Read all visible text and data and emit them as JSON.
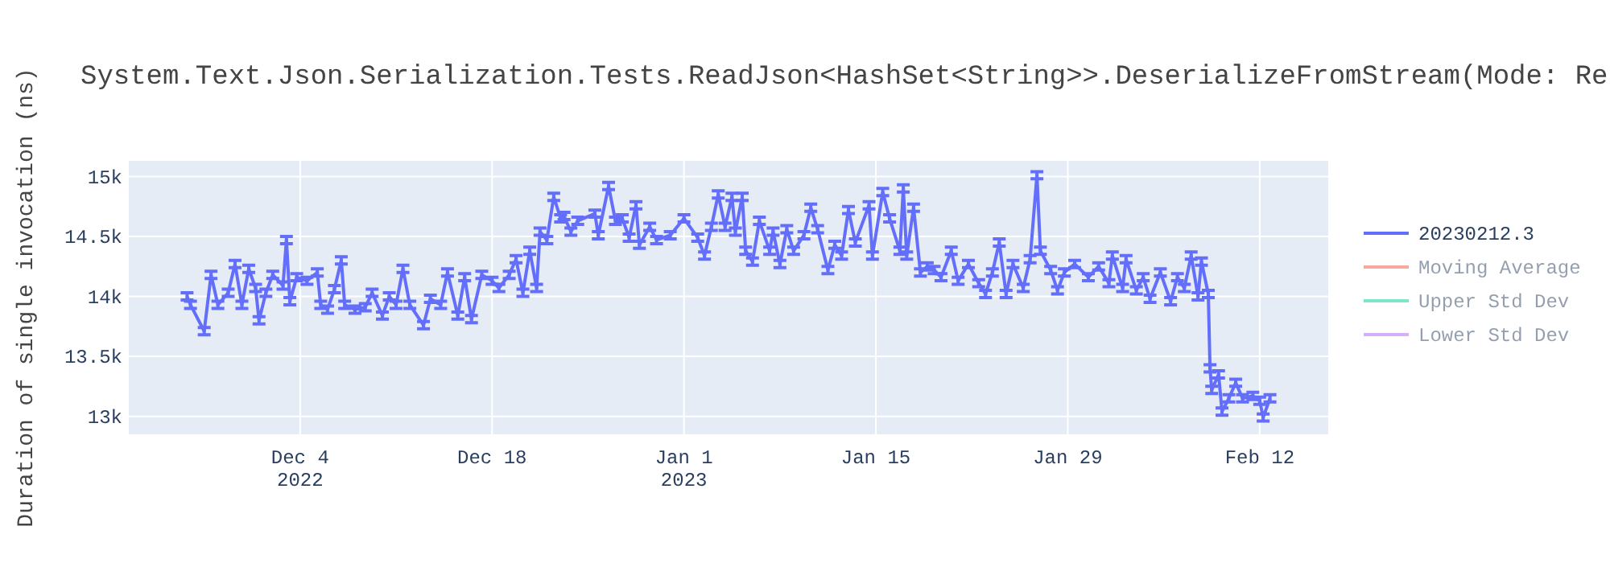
{
  "chart_data": {
    "type": "line",
    "title": "System.Text.Json.Serialization.Tests.ReadJson<HashSet<String>>.DeserializeFromStream(Mode: Re",
    "ylabel": "Duration of single invocation (ns)",
    "x": [
      "2022-11-25T18:00",
      "2022-11-26T00:00",
      "2022-11-27T00:00",
      "2022-11-27T12:00",
      "2022-11-28T00:00",
      "2022-11-28T18:00",
      "2022-11-29T06:00",
      "2022-11-29T18:00",
      "2022-11-30T06:00",
      "2022-11-30T18:00",
      "2022-12-01T00:00",
      "2022-12-01T12:00",
      "2022-12-02T00:00",
      "2022-12-02T18:00",
      "2022-12-03T00:00",
      "2022-12-03T06:00",
      "2022-12-03T18:00",
      "2022-12-04T12:00",
      "2022-12-05T06:00",
      "2022-12-05T12:00",
      "2022-12-06T00:00",
      "2022-12-06T12:00",
      "2022-12-07T00:00",
      "2022-12-07T06:00",
      "2022-12-08T00:00",
      "2022-12-08T18:00",
      "2022-12-09T06:00",
      "2022-12-10T00:00",
      "2022-12-10T12:00",
      "2022-12-11T00:00",
      "2022-12-11T12:00",
      "2022-12-12T00:00",
      "2022-12-13T00:00",
      "2022-12-13T12:00",
      "2022-12-14T06:00",
      "2022-12-14T18:00",
      "2022-12-15T12:00",
      "2022-12-16T00:00",
      "2022-12-16T12:00",
      "2022-12-17T06:00",
      "2022-12-18T00:00",
      "2022-12-18T12:00",
      "2022-12-19T06:00",
      "2022-12-19T18:00",
      "2022-12-20T06:00",
      "2022-12-20T18:00",
      "2022-12-21T06:00",
      "2022-12-21T12:00",
      "2022-12-22T00:00",
      "2022-12-22T12:00",
      "2022-12-23T00:00",
      "2022-12-23T06:00",
      "2022-12-23T18:00",
      "2022-12-24T06:00",
      "2022-12-25T12:00",
      "2022-12-25T18:00",
      "2022-12-26T12:00",
      "2022-12-27T00:00",
      "2022-12-27T12:00",
      "2022-12-28T00:00",
      "2022-12-28T12:00",
      "2022-12-28T18:00",
      "2022-12-29T12:00",
      "2022-12-30T00:00",
      "2022-12-31T00:00",
      "2023-01-01T00:00",
      "2023-01-02T00:00",
      "2023-01-02T12:00",
      "2023-01-03T00:00",
      "2023-01-03T12:00",
      "2023-01-04T00:00",
      "2023-01-04T12:00",
      "2023-01-04T18:00",
      "2023-01-05T06:00",
      "2023-01-05T12:00",
      "2023-01-06T00:00",
      "2023-01-06T12:00",
      "2023-01-07T06:00",
      "2023-01-07T12:00",
      "2023-01-08T00:00",
      "2023-01-08T12:00",
      "2023-01-09T00:00",
      "2023-01-09T18:00",
      "2023-01-10T06:00",
      "2023-01-10T18:00",
      "2023-01-11T12:00",
      "2023-01-12T00:00",
      "2023-01-12T12:00",
      "2023-01-13T00:00",
      "2023-01-13T12:00",
      "2023-01-14T12:00",
      "2023-01-14T18:00",
      "2023-01-15T12:00",
      "2023-01-16T00:00",
      "2023-01-16T18:00",
      "2023-01-17T00:00",
      "2023-01-17T06:00",
      "2023-01-17T18:00",
      "2023-01-18T06:00",
      "2023-01-18T18:00",
      "2023-01-19T06:00",
      "2023-01-19T18:00",
      "2023-01-20T12:00",
      "2023-01-21T00:00",
      "2023-01-21T18:00",
      "2023-01-22T12:00",
      "2023-01-23T00:00",
      "2023-01-23T12:00",
      "2023-01-24T00:00",
      "2023-01-24T12:00",
      "2023-01-25T00:00",
      "2023-01-25T18:00",
      "2023-01-26T06:00",
      "2023-01-26T18:00",
      "2023-01-27T00:00",
      "2023-01-27T18:00",
      "2023-01-28T06:00",
      "2023-01-28T18:00",
      "2023-01-29T12:00",
      "2023-01-30T12:00",
      "2023-01-31T06:00",
      "2023-02-01T00:00",
      "2023-02-01T06:00",
      "2023-02-02T00:00",
      "2023-02-02T06:00",
      "2023-02-03T00:00",
      "2023-02-03T12:00",
      "2023-02-04T00:00",
      "2023-02-04T18:00",
      "2023-02-05T12:00",
      "2023-02-06T00:00",
      "2023-02-06T12:00",
      "2023-02-07T00:00",
      "2023-02-07T12:00",
      "2023-02-07T18:00",
      "2023-02-08T06:00",
      "2023-02-08T09:00",
      "2023-02-08T12:00",
      "2023-02-09T00:00",
      "2023-02-09T06:00",
      "2023-02-09T18:00",
      "2023-02-10T06:00",
      "2023-02-10T18:00",
      "2023-02-11T12:00",
      "2023-02-12T00:00",
      "2023-02-12T06:00",
      "2023-02-12T18:00"
    ],
    "series": [
      {
        "name": "20230212.3",
        "color": "#636efa",
        "values": [
          14000,
          13930,
          13710,
          14180,
          13930,
          14030,
          14270,
          13930,
          14230,
          14070,
          13800,
          14030,
          14180,
          14090,
          14470,
          13960,
          14160,
          14130,
          14200,
          13930,
          13890,
          14060,
          14300,
          13930,
          13890,
          13910,
          14030,
          13840,
          14000,
          13930,
          14230,
          13930,
          13760,
          13980,
          13930,
          14200,
          13840,
          14160,
          13810,
          14180,
          14130,
          14070,
          14180,
          14310,
          14030,
          14380,
          14070,
          14540,
          14470,
          14830,
          14650,
          14670,
          14540,
          14630,
          14690,
          14510,
          14920,
          14630,
          14650,
          14490,
          14760,
          14430,
          14580,
          14470,
          14510,
          14650,
          14490,
          14340,
          14580,
          14850,
          14580,
          14830,
          14540,
          14830,
          14380,
          14290,
          14630,
          14380,
          14540,
          14270,
          14560,
          14380,
          14510,
          14740,
          14560,
          14220,
          14430,
          14340,
          14720,
          14450,
          14760,
          14340,
          14870,
          14650,
          14380,
          14900,
          14340,
          14740,
          14200,
          14250,
          14220,
          14160,
          14380,
          14130,
          14270,
          14110,
          14020,
          14200,
          14450,
          14020,
          14270,
          14070,
          14310,
          15010,
          14380,
          14220,
          14050,
          14200,
          14270,
          14160,
          14250,
          14110,
          14340,
          14070,
          14310,
          14050,
          14160,
          13980,
          14200,
          13960,
          14160,
          14070,
          14340,
          14000,
          14290,
          14020,
          13400,
          13220,
          13350,
          13040,
          13150,
          13280,
          13150,
          13170,
          13130,
          12990,
          13150
        ],
        "errors": [
          30,
          30,
          30,
          30,
          30,
          30,
          30,
          30,
          30,
          30,
          30,
          30,
          30,
          30,
          30,
          30,
          30,
          30,
          30,
          30,
          30,
          30,
          30,
          30,
          30,
          30,
          30,
          30,
          30,
          30,
          30,
          30,
          30,
          30,
          30,
          30,
          30,
          30,
          30,
          30,
          30,
          30,
          30,
          30,
          30,
          30,
          30,
          30,
          30,
          30,
          30,
          30,
          30,
          30,
          30,
          30,
          30,
          30,
          30,
          30,
          30,
          30,
          30,
          30,
          30,
          30,
          30,
          30,
          30,
          30,
          30,
          30,
          30,
          30,
          30,
          30,
          30,
          30,
          30,
          30,
          30,
          30,
          30,
          30,
          30,
          30,
          30,
          30,
          30,
          30,
          30,
          30,
          30,
          30,
          30,
          30,
          30,
          30,
          30,
          30,
          30,
          30,
          30,
          30,
          30,
          30,
          30,
          30,
          30,
          30,
          30,
          30,
          30,
          30,
          30,
          30,
          30,
          30,
          30,
          30,
          30,
          30,
          30,
          30,
          30,
          30,
          30,
          30,
          30,
          30,
          30,
          30,
          30,
          30,
          30,
          30,
          30,
          30,
          30,
          30,
          30,
          30,
          30,
          30,
          30,
          30,
          30
        ]
      },
      {
        "name": "Moving Average",
        "color": "#ef553b",
        "values": [
          null,
          null,
          null,
          null,
          null,
          null,
          null,
          null,
          null,
          null,
          null,
          null,
          null,
          null,
          null,
          null,
          null,
          null,
          null,
          null,
          null,
          null,
          null,
          null,
          null,
          null,
          null,
          null,
          null,
          null,
          null,
          null,
          null,
          null,
          null,
          null,
          null,
          null,
          null,
          null,
          null,
          null,
          null,
          null,
          null,
          null,
          null,
          null,
          null,
          null,
          null,
          null,
          null,
          null,
          null,
          null,
          null,
          null,
          null,
          null,
          null,
          null,
          null,
          null,
          null,
          null,
          null,
          null,
          null,
          null,
          null,
          null,
          null,
          null,
          null,
          null,
          null,
          null,
          null,
          null,
          null,
          null,
          null,
          null,
          null,
          null,
          null,
          null,
          null,
          null,
          null,
          null,
          null,
          null,
          null,
          null,
          null,
          null,
          null,
          null,
          null,
          null,
          null,
          null,
          null,
          null,
          null,
          null,
          null,
          null,
          null,
          null,
          null,
          null,
          null,
          null,
          null,
          null,
          null,
          null,
          null,
          null,
          null,
          null,
          null,
          null,
          null,
          null,
          null,
          null,
          null,
          null,
          null,
          null,
          null,
          null,
          null,
          null,
          null,
          null,
          null,
          null,
          null,
          null,
          null,
          null,
          null
        ]
      },
      {
        "name": "Upper Std Dev",
        "color": "#00cc96",
        "values": [
          null,
          null,
          null,
          null,
          null,
          null,
          null,
          null,
          null,
          null,
          null,
          null,
          null,
          null,
          null,
          null,
          null,
          null,
          null,
          null,
          null,
          null,
          null,
          null,
          null,
          null,
          null,
          null,
          null,
          null,
          null,
          null,
          null,
          null,
          null,
          null,
          null,
          null,
          null,
          null,
          null,
          null,
          null,
          null,
          null,
          null,
          null,
          null,
          null,
          null,
          null,
          null,
          null,
          null,
          null,
          null,
          null,
          null,
          null,
          null,
          null,
          null,
          null,
          null,
          null,
          null,
          null,
          null,
          null,
          null,
          null,
          null,
          null,
          null,
          null,
          null,
          null,
          null,
          null,
          null,
          null,
          null,
          null,
          null,
          null,
          null,
          null,
          null,
          null,
          null,
          null,
          null,
          null,
          null,
          null,
          null,
          null,
          null,
          null,
          null,
          null,
          null,
          null,
          null,
          null,
          null,
          null,
          null,
          null,
          null,
          null,
          null,
          null,
          null,
          null,
          null,
          null,
          null,
          null,
          null,
          null,
          null,
          null,
          null,
          null,
          null,
          null,
          null,
          null,
          null,
          null,
          null,
          null,
          null,
          null,
          null,
          null,
          null,
          null,
          null,
          null,
          null,
          null,
          null,
          null,
          null,
          null
        ]
      },
      {
        "name": "Lower Std Dev",
        "color": "#ab63fa",
        "values": [
          null,
          null,
          null,
          null,
          null,
          null,
          null,
          null,
          null,
          null,
          null,
          null,
          null,
          null,
          null,
          null,
          null,
          null,
          null,
          null,
          null,
          null,
          null,
          null,
          null,
          null,
          null,
          null,
          null,
          null,
          null,
          null,
          null,
          null,
          null,
          null,
          null,
          null,
          null,
          null,
          null,
          null,
          null,
          null,
          null,
          null,
          null,
          null,
          null,
          null,
          null,
          null,
          null,
          null,
          null,
          null,
          null,
          null,
          null,
          null,
          null,
          null,
          null,
          null,
          null,
          null,
          null,
          null,
          null,
          null,
          null,
          null,
          null,
          null,
          null,
          null,
          null,
          null,
          null,
          null,
          null,
          null,
          null,
          null,
          null,
          null,
          null,
          null,
          null,
          null,
          null,
          null,
          null,
          null,
          null,
          null,
          null,
          null,
          null,
          null,
          null,
          null,
          null,
          null,
          null,
          null,
          null,
          null,
          null,
          null,
          null,
          null,
          null,
          null,
          null,
          null,
          null,
          null,
          null,
          null,
          null,
          null,
          null,
          null,
          null,
          null,
          null,
          null,
          null,
          null,
          null,
          null,
          null,
          null,
          null,
          null,
          null,
          null,
          null,
          null,
          null,
          null,
          null,
          null,
          null,
          null,
          null
        ]
      }
    ],
    "xlim": [
      "2022-11-21T12:00",
      "2023-02-17T00:00"
    ],
    "xticks": [
      {
        "value": "2022-12-04",
        "label": "Dec 4\n2022"
      },
      {
        "value": "2022-12-18",
        "label": "Dec 18"
      },
      {
        "value": "2023-01-01",
        "label": "Jan 1\n2023"
      },
      {
        "value": "2023-01-15",
        "label": "Jan 15"
      },
      {
        "value": "2023-01-29",
        "label": "Jan 29"
      },
      {
        "value": "2023-02-12",
        "label": "Feb 12"
      }
    ],
    "ylim": [
      12850,
      15130
    ],
    "yticks": [
      {
        "value": 13000,
        "label": "13k"
      },
      {
        "value": 13500,
        "label": "13.5k"
      },
      {
        "value": 14000,
        "label": "14k"
      },
      {
        "value": 14500,
        "label": "14.5k"
      },
      {
        "value": 15000,
        "label": "15k"
      }
    ],
    "grid": true,
    "legend": "top right",
    "marker": "none",
    "line_style": "solid"
  }
}
